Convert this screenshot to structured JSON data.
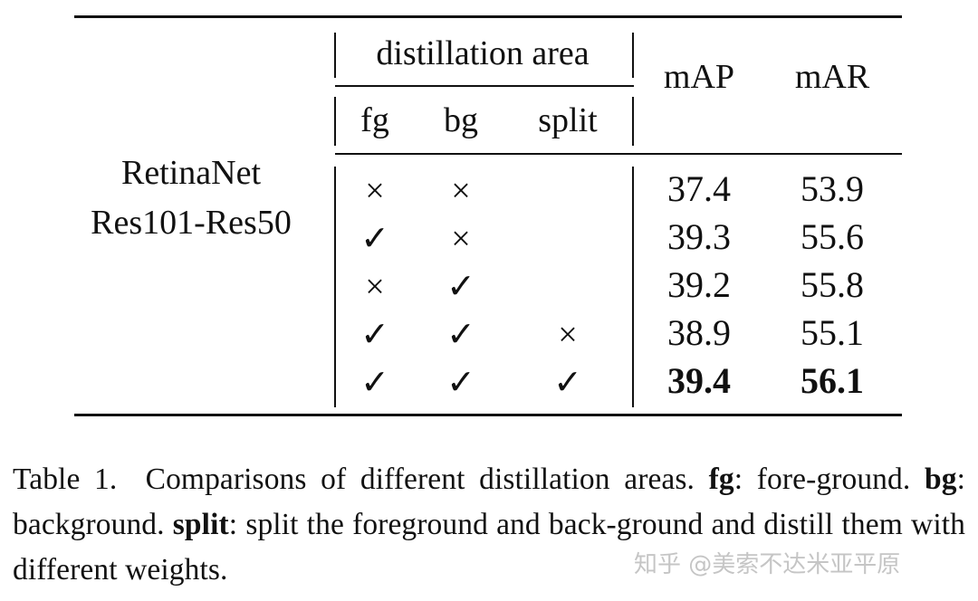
{
  "table": {
    "group_header": "distillation area",
    "sub_headers": [
      "fg",
      "bg",
      "split"
    ],
    "metric_headers": [
      "mAP",
      "mAR"
    ],
    "row_label": [
      "RetinaNet",
      "Res101-Res50"
    ],
    "rows": [
      {
        "fg": "×",
        "bg": "×",
        "split": "",
        "mAP": "37.4",
        "mAR": "53.9",
        "bold": false
      },
      {
        "fg": "✓",
        "bg": "×",
        "split": "",
        "mAP": "39.3",
        "mAR": "55.6",
        "bold": false
      },
      {
        "fg": "×",
        "bg": "✓",
        "split": "",
        "mAP": "39.2",
        "mAR": "55.8",
        "bold": false
      },
      {
        "fg": "✓",
        "bg": "✓",
        "split": "×",
        "mAP": "38.9",
        "mAR": "55.1",
        "bold": false
      },
      {
        "fg": "✓",
        "bg": "✓",
        "split": "✓",
        "mAP": "39.4",
        "mAR": "56.1",
        "bold": true
      }
    ]
  },
  "caption": {
    "label": "Table 1.",
    "text": "Comparisons of different distillation areas.",
    "fg_key": "fg",
    "fg_desc": ": fore-ground.",
    "bg_key": "bg",
    "bg_desc": ": background.",
    "split_key": "split",
    "split_desc": ": split the foreground and back-ground and distill them with different weights."
  },
  "watermark": "知乎 @美索不达米亚平原"
}
